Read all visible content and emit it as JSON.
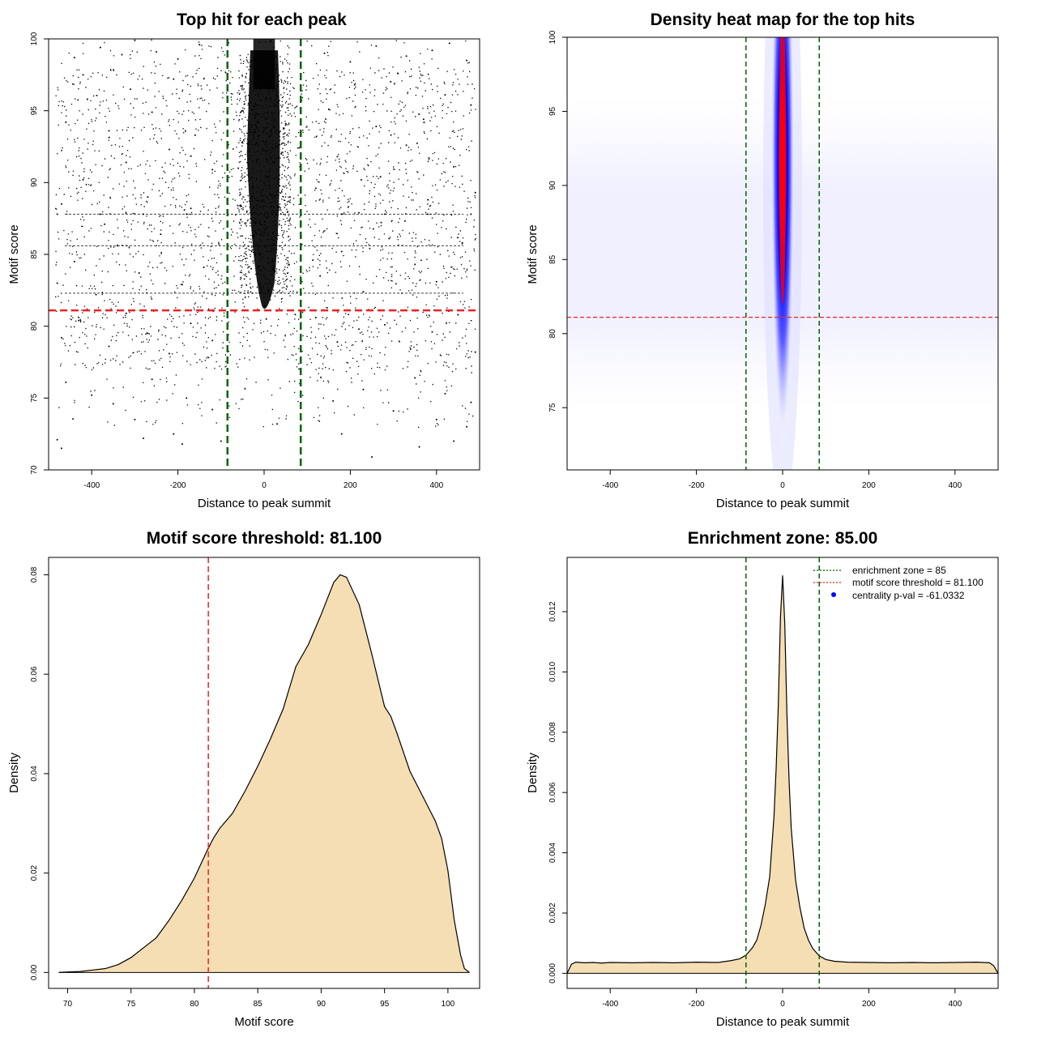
{
  "colors": {
    "threshold": "#ee2222",
    "zone": "#006400",
    "fill": "#f5deb3",
    "heat_low": "#ffffff",
    "heat_mid": "#0000ff",
    "heat_high": "#ff0000",
    "centrality_dot": "#0000ff"
  },
  "chart_data": [
    {
      "type": "scatter",
      "title": "Top hit for each peak",
      "xlabel": "Distance to peak summit",
      "ylabel": "Motif score",
      "xlim": [
        -500,
        500
      ],
      "ylim": [
        70,
        100
      ],
      "xticks": [
        "-400",
        "-200",
        "0",
        "200",
        "400"
      ],
      "yticks": [
        "70",
        "75",
        "80",
        "85",
        "90",
        "95",
        "100"
      ],
      "vlines": [
        -85,
        85
      ],
      "hline": 81.1,
      "points": [
        [
          -480,
          72.1
        ],
        [
          -470,
          71.5
        ],
        [
          -300,
          73.5
        ],
        [
          -280,
          72.2
        ],
        [
          -210,
          72.5
        ],
        [
          -190,
          71.8
        ],
        [
          -100,
          72.0
        ],
        [
          30,
          73.2
        ],
        [
          180,
          72.5
        ],
        [
          250,
          70.9
        ],
        [
          360,
          71.6
        ],
        [
          400,
          73.5
        ],
        [
          440,
          72.0
        ],
        [
          470,
          73.0
        ],
        [
          -440,
          98.7
        ],
        [
          -420,
          97.5
        ],
        [
          -380,
          99.4
        ],
        [
          -330,
          98.9
        ],
        [
          -300,
          99.9
        ],
        [
          -250,
          99.1
        ],
        [
          -200,
          98.6
        ],
        [
          -150,
          99.6
        ],
        [
          140,
          99.0
        ],
        [
          200,
          98.4
        ],
        [
          260,
          99.5
        ],
        [
          330,
          98.8
        ],
        [
          390,
          99.2
        ],
        [
          430,
          99.7
        ],
        [
          470,
          98.5
        ],
        [
          -460,
          76.1
        ],
        [
          -400,
          75.2
        ],
        [
          -350,
          74.6
        ],
        [
          -260,
          76.3
        ],
        [
          -180,
          75.0
        ],
        [
          -120,
          74.2
        ],
        [
          160,
          74.8
        ],
        [
          230,
          75.6
        ],
        [
          300,
          74.1
        ],
        [
          350,
          76.4
        ],
        [
          420,
          75.3
        ],
        [
          480,
          74.7
        ],
        [
          -470,
          79.2
        ],
        [
          -430,
          80.4
        ],
        [
          -360,
          78.6
        ],
        [
          -320,
          80.9
        ],
        [
          -270,
          79.5
        ],
        [
          -220,
          78.1
        ],
        [
          -170,
          80.2
        ],
        [
          -120,
          79.0
        ],
        [
          120,
          80.6
        ],
        [
          170,
          78.9
        ],
        [
          220,
          79.8
        ],
        [
          280,
          80.1
        ],
        [
          340,
          78.4
        ],
        [
          390,
          79.6
        ],
        [
          450,
          80.8
        ],
        [
          490,
          78.2
        ],
        [
          -480,
          83.0
        ],
        [
          -440,
          84.5
        ],
        [
          -390,
          82.2
        ],
        [
          -340,
          85.6
        ],
        [
          -290,
          83.7
        ],
        [
          -240,
          86.4
        ],
        [
          -190,
          82.9
        ],
        [
          -140,
          84.1
        ],
        [
          130,
          83.5
        ],
        [
          180,
          85.2
        ],
        [
          230,
          82.4
        ],
        [
          290,
          86.1
        ],
        [
          350,
          84.3
        ],
        [
          400,
          83.1
        ],
        [
          460,
          85.8
        ],
        [
          -470,
          88.5
        ],
        [
          -420,
          90.2
        ],
        [
          -370,
          87.1
        ],
        [
          -320,
          91.4
        ],
        [
          -270,
          89.0
        ],
        [
          -220,
          92.3
        ],
        [
          -170,
          88.2
        ],
        [
          -120,
          90.9
        ],
        [
          120,
          89.6
        ],
        [
          170,
          91.8
        ],
        [
          220,
          87.9
        ],
        [
          270,
          90.4
        ],
        [
          330,
          92.6
        ],
        [
          380,
          88.8
        ],
        [
          440,
          91.1
        ],
        [
          490,
          89.3
        ],
        [
          -460,
          94.2
        ],
        [
          -410,
          95.8
        ],
        [
          -360,
          93.6
        ],
        [
          -310,
          96.5
        ],
        [
          -260,
          94.9
        ],
        [
          -210,
          97.2
        ],
        [
          -160,
          93.3
        ],
        [
          150,
          95.1
        ],
        [
          210,
          96.8
        ],
        [
          260,
          93.9
        ],
        [
          310,
          97.6
        ],
        [
          370,
          94.4
        ],
        [
          420,
          96.1
        ],
        [
          480,
          95.4
        ],
        [
          -480,
          87.8
        ],
        [
          -380,
          87.8
        ],
        [
          -280,
          87.8
        ],
        [
          -180,
          87.8
        ],
        [
          180,
          87.8
        ],
        [
          280,
          87.8
        ],
        [
          380,
          87.8
        ],
        [
          480,
          87.8
        ],
        [
          -60,
          91.0
        ],
        [
          -40,
          88.0
        ],
        [
          -20,
          93.5
        ],
        [
          0,
          90.0
        ],
        [
          20,
          86.5
        ],
        [
          40,
          92.0
        ],
        [
          60,
          89.0
        ],
        [
          -30,
          84.0
        ],
        [
          10,
          82.5
        ],
        [
          30,
          96.0
        ],
        [
          -10,
          99.0
        ],
        [
          15,
          99.8
        ],
        [
          -15,
          97.0
        ],
        [
          5,
          80.5
        ],
        [
          -50,
          95.0
        ],
        [
          50,
          94.0
        ]
      ]
    },
    {
      "type": "heatmap",
      "title": "Density heat map for the top hits",
      "xlabel": "Distance to peak summit",
      "ylabel": "Motif score",
      "xlim": [
        -500,
        500
      ],
      "ylim": [
        70.8,
        100
      ],
      "xticks": [
        "-400",
        "-200",
        "0",
        "200",
        "400"
      ],
      "yticks": [
        "75",
        "80",
        "85",
        "90",
        "95",
        "100"
      ],
      "vlines": [
        -85,
        85
      ],
      "hline": 81.1,
      "peak": {
        "x": 0,
        "y": 92,
        "value": 1.0
      },
      "background_band": {
        "y_from": 75,
        "y_to": 96,
        "value": 0.04
      }
    },
    {
      "type": "area",
      "title": "Motif score threshold: 81.100",
      "xlabel": "Motif score",
      "ylabel": "Density",
      "xlim": [
        68.5,
        102.5
      ],
      "ylim": [
        -0.0032,
        0.0835
      ],
      "xticks": [
        "70",
        "75",
        "80",
        "85",
        "90",
        "95",
        "100"
      ],
      "yticks": [
        "0.00",
        "0.02",
        "0.04",
        "0.06",
        "0.08"
      ],
      "vline": 81.1,
      "x": [
        69.3,
        70,
        71,
        72,
        73,
        74,
        75,
        76,
        77,
        78,
        79,
        80,
        81,
        81.5,
        82,
        82.5,
        83,
        84,
        85,
        86,
        87,
        88,
        89,
        90,
        91,
        91.5,
        92,
        93,
        94,
        95,
        95.5,
        96,
        97,
        98,
        99,
        99.5,
        100,
        100.5,
        101,
        101.3,
        101.7
      ],
      "y": [
        0.0,
        0.0001,
        0.0002,
        0.0005,
        0.0008,
        0.0016,
        0.003,
        0.005,
        0.007,
        0.0105,
        0.0145,
        0.019,
        0.0245,
        0.027,
        0.029,
        0.0305,
        0.032,
        0.0365,
        0.0415,
        0.047,
        0.053,
        0.0615,
        0.066,
        0.072,
        0.0785,
        0.08,
        0.0795,
        0.074,
        0.064,
        0.0535,
        0.0515,
        0.048,
        0.0405,
        0.0355,
        0.0305,
        0.027,
        0.0205,
        0.0105,
        0.0035,
        0.0008,
        0.0
      ]
    },
    {
      "type": "area",
      "title": "Enrichment zone: 85.00",
      "xlabel": "Distance to peak summit",
      "ylabel": "Density",
      "xlim": [
        -500,
        500
      ],
      "ylim": [
        -0.0005,
        0.0138
      ],
      "xticks": [
        "-400",
        "-200",
        "0",
        "200",
        "400"
      ],
      "yticks": [
        "0.000",
        "0.002",
        "0.004",
        "0.006",
        "0.008",
        "0.010",
        "0.012"
      ],
      "vlines": [
        -85,
        85
      ],
      "x": [
        -500,
        -490,
        -480,
        -460,
        -440,
        -420,
        -400,
        -350,
        -300,
        -250,
        -200,
        -150,
        -120,
        -100,
        -85,
        -70,
        -60,
        -50,
        -40,
        -30,
        -20,
        -15,
        -10,
        -5,
        0,
        5,
        10,
        15,
        20,
        30,
        40,
        50,
        60,
        70,
        85,
        100,
        120,
        150,
        200,
        250,
        300,
        350,
        400,
        450,
        480,
        490,
        495,
        500
      ],
      "y": [
        0.0,
        0.0003,
        0.00037,
        0.00035,
        0.00036,
        0.00034,
        0.00036,
        0.00035,
        0.00036,
        0.00035,
        0.00037,
        0.00036,
        0.00042,
        0.00048,
        0.0006,
        0.00085,
        0.0011,
        0.0016,
        0.0023,
        0.0032,
        0.0052,
        0.0068,
        0.0089,
        0.0118,
        0.0132,
        0.0116,
        0.0086,
        0.0064,
        0.0048,
        0.0031,
        0.0022,
        0.0015,
        0.0011,
        0.00082,
        0.00058,
        0.00046,
        0.0004,
        0.00037,
        0.00036,
        0.00035,
        0.00036,
        0.00035,
        0.00036,
        0.00037,
        0.00035,
        0.00025,
        0.00012,
        0.0
      ],
      "legend": {
        "position": "top-right",
        "entries": [
          {
            "label": "enrichment zone = 85",
            "style": "dotted",
            "color": "#006400"
          },
          {
            "label": "motif score threshold = 81.100",
            "style": "dotted",
            "color": "#ee2222"
          },
          {
            "label": "centrality p-val = -61.0332",
            "style": "dot",
            "color": "#0000ff"
          }
        ]
      }
    }
  ]
}
